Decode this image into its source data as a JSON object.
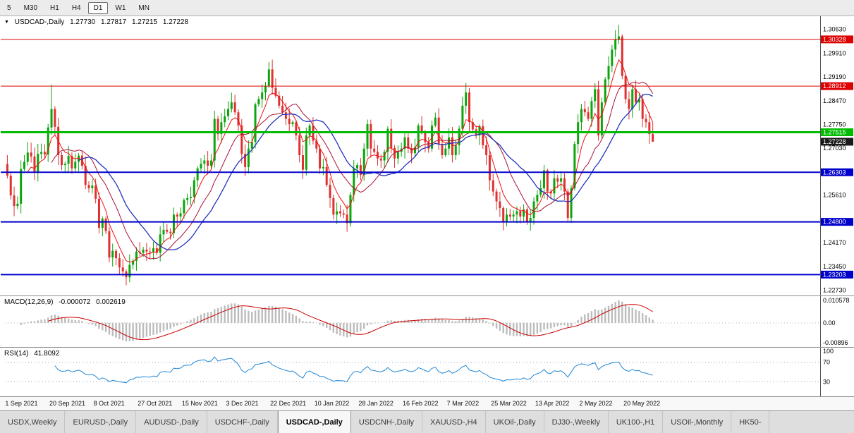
{
  "toolbar": {
    "timeframes": [
      {
        "label": "5",
        "active": false
      },
      {
        "label": "M30",
        "active": false
      },
      {
        "label": "H1",
        "active": false
      },
      {
        "label": "H4",
        "active": false
      },
      {
        "label": "D1",
        "active": true
      },
      {
        "label": "W1",
        "active": false
      },
      {
        "label": "MN",
        "active": false
      }
    ]
  },
  "chart": {
    "header": {
      "collapse_icon": "▼",
      "symbol": "USDCAD-,Daily",
      "open": "1.27730",
      "high": "1.27817",
      "low": "1.27215",
      "close": "1.27228"
    }
  },
  "macd": {
    "label": "MACD(12,26,9)",
    "value1": "-0.000072",
    "value2": "0.002619",
    "axis_labels": [
      "0.010578",
      "0.00",
      "-0.00896"
    ],
    "fast": 12,
    "slow": 26,
    "signal_period": 9,
    "hist_color": "#bcbcbc",
    "signal_color": "#cc0000"
  },
  "rsi": {
    "label": "RSI(14)",
    "value": "41.8092",
    "period": 14,
    "levels": [
      70,
      30
    ],
    "axis_labels": [
      "100",
      "70",
      "30"
    ],
    "line_color": "#1f86d6",
    "level_color": "#96a5c8"
  },
  "tabs": [
    {
      "label": "USDX,Weekly",
      "active": false
    },
    {
      "label": "EURUSD-,Daily",
      "active": false
    },
    {
      "label": "AUDUSD-,Daily",
      "active": false
    },
    {
      "label": "USDCHF-,Daily",
      "active": false
    },
    {
      "label": "USDCAD-,Daily",
      "active": true
    },
    {
      "label": "USDCNH-,Daily",
      "active": false
    },
    {
      "label": "XAUUSD-,H4",
      "active": false
    },
    {
      "label": "UKOil-,Daily",
      "active": false
    },
    {
      "label": "DJ30-,Weekly",
      "active": false
    },
    {
      "label": "UK100-,H1",
      "active": false
    },
    {
      "label": "USOil-,Monthly",
      "active": false
    },
    {
      "label": "HK50-",
      "active": false
    }
  ],
  "chart_data": {
    "type": "candlestick",
    "symbol": "USDCAD",
    "timeframe": "Daily",
    "up_color": "#0ca50c",
    "down_color": "#e03030",
    "price_range": [
      1.2257,
      1.3103
    ],
    "x_label_step": 13,
    "x_labels": [
      "1 Sep 2021",
      "20 Sep 2021",
      "8 Oct 2021",
      "27 Oct 2021",
      "15 Nov 2021",
      "3 Dec 2021",
      "22 Dec 2021",
      "10 Jan 2022",
      "28 Jan 2022",
      "16 Feb 2022",
      "7 Mar 2022",
      "25 Mar 2022",
      "13 Apr 2022",
      "2 May 2022",
      "20 May 2022"
    ],
    "price_axis_ticks": [
      "1.30630",
      "1.29910",
      "1.29190",
      "1.28470",
      "1.27750",
      "1.27030",
      "1.25610",
      "1.24170",
      "1.23450",
      "1.22730"
    ],
    "hlines": [
      {
        "price": 1.30328,
        "label": "1.30328",
        "color": "#dd0000",
        "width": 1,
        "name": "resistance-line-1"
      },
      {
        "price": 1.28912,
        "label": "1.28912",
        "color": "#dd0000",
        "width": 1,
        "name": "resistance-line-2"
      },
      {
        "price": 1.27515,
        "label": "1.27515",
        "color": "#00bb00",
        "width": 3,
        "name": "support-line-green"
      },
      {
        "price": 1.26303,
        "label": "1.26303",
        "color": "#0000cc",
        "width": 2,
        "name": "support-line-1"
      },
      {
        "price": 1.248,
        "label": "1.24800",
        "color": "#0000cc",
        "width": 2,
        "name": "support-line-2"
      },
      {
        "price": 1.23203,
        "label": "1.23203",
        "color": "#0000cc",
        "width": 2,
        "name": "support-line-3"
      }
    ],
    "current_price": {
      "price": 1.27228,
      "label": "1.27228",
      "color": "#1a1a1a"
    },
    "moving_averages": [
      {
        "method": "ema",
        "period": 6,
        "color": "#ee1111",
        "width": 1
      },
      {
        "method": "sma",
        "period": 13,
        "color": "#aa1133",
        "width": 1
      },
      {
        "method": "sma",
        "period": 21,
        "color": "#2233bb",
        "width": 1.3
      }
    ],
    "first_open": 1.2655,
    "wick_overrides": {
      "13": {
        "h": 1.2896
      },
      "35": {
        "l": 1.2288
      },
      "77": {
        "h": 1.2964
      },
      "100": {
        "l": 1.245
      },
      "135": {
        "h": 1.2901
      },
      "180": {
        "h": 1.3077
      },
      "190": {
        "h": 1.2782,
        "l": 1.2722
      }
    },
    "closes": [
      1.262,
      1.256,
      1.2528,
      1.2535,
      1.264,
      1.2662,
      1.269,
      1.2678,
      1.2632,
      1.2686,
      1.2692,
      1.2684,
      1.2766,
      1.2822,
      1.2768,
      1.2682,
      1.2652,
      1.2656,
      1.268,
      1.2642,
      1.2662,
      1.2681,
      1.265,
      1.2592,
      1.2582,
      1.259,
      1.255,
      1.2462,
      1.249,
      1.2452,
      1.2372,
      1.2392,
      1.237,
      1.2342,
      1.233,
      1.2312,
      1.235,
      1.2362,
      1.239,
      1.2386,
      1.2396,
      1.239,
      1.2388,
      1.24,
      1.2386,
      1.2442,
      1.2456,
      1.245,
      1.2446,
      1.2502,
      1.2496,
      1.2506,
      1.2546,
      1.2552,
      1.2556,
      1.2606,
      1.2642,
      1.2656,
      1.2666,
      1.265,
      1.2666,
      1.2792,
      1.2746,
      1.2782,
      1.28,
      1.2822,
      1.2842,
      1.2812,
      1.2772,
      1.2686,
      1.2646,
      1.2702,
      1.2722,
      1.2836,
      1.2852,
      1.2872,
      1.2892,
      1.2942,
      1.2886,
      1.2862,
      1.2832,
      1.2812,
      1.2792,
      1.2776,
      1.2782,
      1.2742,
      1.2682,
      1.2638,
      1.2742,
      1.2772,
      1.2726,
      1.2702,
      1.2642,
      1.2646,
      1.2592,
      1.2552,
      1.2502,
      1.2512,
      1.2506,
      1.2502,
      1.2476,
      1.2562,
      1.2642,
      1.2652,
      1.2622,
      1.2702,
      1.2776,
      1.2702,
      1.2692,
      1.2672,
      1.2666,
      1.2692,
      1.2762,
      1.2704,
      1.2672,
      1.2692,
      1.2702,
      1.2736,
      1.2702,
      1.2688,
      1.2706,
      1.2772,
      1.2752,
      1.2722,
      1.2702,
      1.2772,
      1.2796,
      1.2716,
      1.2682,
      1.2702,
      1.2736,
      1.2682,
      1.2712,
      1.2762,
      1.2832,
      1.2872,
      1.2782,
      1.276,
      1.2742,
      1.277,
      1.2712,
      1.2682,
      1.2606,
      1.2572,
      1.2542,
      1.2522,
      1.2482,
      1.2502,
      1.2496,
      1.2502,
      1.2512,
      1.2496,
      1.2518,
      1.2482,
      1.2492,
      1.2542,
      1.2562,
      1.2582,
      1.2636,
      1.2572,
      1.2566,
      1.2612,
      1.2602,
      1.2612,
      1.2572,
      1.2492,
      1.2582,
      1.2716,
      1.2782,
      1.2822,
      1.2812,
      1.2792,
      1.2846,
      1.2882,
      1.2742,
      1.2842,
      1.2912,
      1.2952,
      1.3002,
      1.3032,
      1.3042,
      1.2922,
      1.2852,
      1.2822,
      1.2882,
      1.2842,
      1.2852,
      1.2792,
      1.2782,
      1.2746,
      1.2723
    ]
  }
}
